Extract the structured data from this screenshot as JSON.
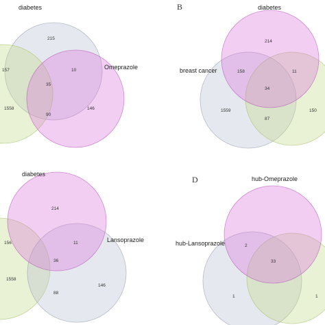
{
  "colors": {
    "gray_blue": "#b4bccd",
    "magenta": "#d973de",
    "lime": "#c4d986",
    "outline_gray_blue": "#8d96a8",
    "outline_magenta": "#b24bb8",
    "outline_lime": "#a2bb62"
  },
  "panels": [
    {
      "letter": "",
      "labels": {
        "top": "diabetes",
        "side": "Omeprazole"
      },
      "counts": [
        "215",
        "157",
        "10",
        "35",
        "1558",
        "90",
        "146"
      ]
    },
    {
      "letter": "B",
      "labels": {
        "top": "diabetes",
        "side": "breast cancer"
      },
      "counts": [
        "214",
        "158",
        "11",
        "34",
        "1559",
        "87",
        "150"
      ]
    },
    {
      "letter": "",
      "labels": {
        "top": "diabetes",
        "side": "Lansoprazole"
      },
      "counts": [
        "214",
        "156",
        "11",
        "36",
        "1558",
        "88",
        "146"
      ]
    },
    {
      "letter": "D",
      "labels": {
        "top": "hub-Omeprazole",
        "side": "hub-Lansoprazole"
      },
      "counts": [
        "2",
        "33",
        "1",
        "1"
      ]
    }
  ]
}
